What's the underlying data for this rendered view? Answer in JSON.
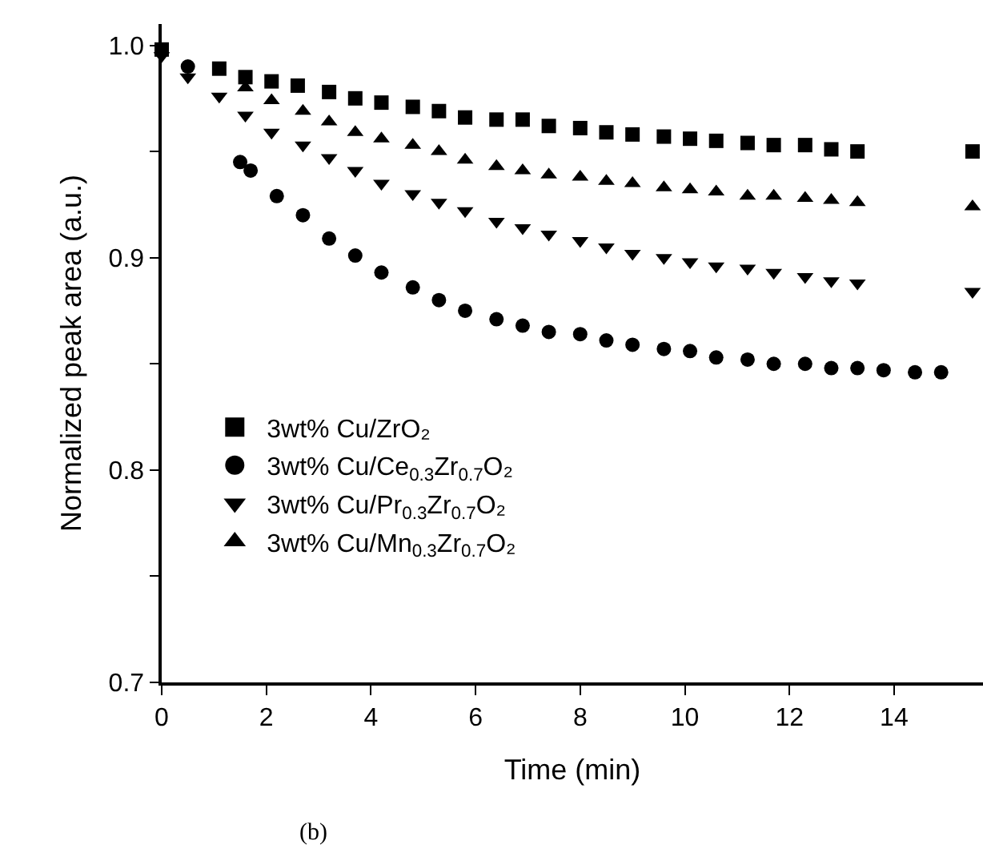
{
  "chart_data": {
    "type": "scatter",
    "xlabel": "Time (min)",
    "ylabel": "Normalized peak area (a.u.)",
    "xlim": [
      0,
      15.7
    ],
    "ylim": [
      0.7,
      1.01
    ],
    "xticks": [
      0,
      2,
      4,
      6,
      8,
      10,
      12,
      14
    ],
    "yticks": [
      {
        "value": 0.7,
        "label": "0.7"
      },
      {
        "value": 0.75,
        "label": null
      },
      {
        "value": 0.8,
        "label": "0.8"
      },
      {
        "value": 0.85,
        "label": null
      },
      {
        "value": 0.9,
        "label": "0.9"
      },
      {
        "value": 0.95,
        "label": null
      },
      {
        "value": 1.0,
        "label": "1.0"
      }
    ],
    "legend": "left",
    "annotations": [
      "(b)"
    ],
    "series": [
      {
        "name": "3wt% Cu/ZrO₂",
        "color": "#000000",
        "marker": "square",
        "x": [
          0,
          0.5,
          1.1,
          1.6,
          2.1,
          2.6,
          3.2,
          3.7,
          4.2,
          4.8,
          5.3,
          5.8,
          6.4,
          6.9,
          7.4,
          8.0,
          8.5,
          9.0,
          9.6,
          10.1,
          10.6,
          11.2,
          11.7,
          12.3,
          12.8,
          13.3,
          15.5
        ],
        "values": [
          0.998,
          null,
          0.989,
          0.985,
          0.983,
          0.981,
          0.978,
          0.975,
          0.973,
          0.971,
          0.969,
          0.966,
          0.965,
          0.965,
          0.962,
          0.961,
          0.959,
          0.958,
          0.957,
          0.956,
          0.955,
          0.954,
          0.953,
          0.953,
          0.951,
          0.95,
          0.95
        ]
      },
      {
        "name": "3wt% Cu/Ce$_{0.3}$Zr$_{0.7}$O₂",
        "color": "#000000",
        "marker": "circle",
        "x": [
          0.5,
          1.5,
          1.7,
          2.2,
          2.7,
          3.2,
          3.7,
          4.2,
          4.8,
          5.3,
          5.8,
          6.4,
          6.9,
          7.4,
          8.0,
          8.5,
          9.0,
          9.6,
          10.1,
          10.6,
          11.2,
          11.7,
          12.3,
          12.8,
          13.3,
          13.8,
          14.4,
          14.9
        ],
        "values": [
          0.99,
          0.945,
          0.941,
          0.929,
          0.92,
          0.909,
          0.901,
          0.893,
          0.886,
          0.88,
          0.875,
          0.871,
          0.868,
          0.865,
          0.864,
          0.861,
          0.859,
          0.857,
          0.856,
          0.853,
          0.852,
          0.85,
          0.85,
          0.848,
          0.848,
          0.847,
          0.846,
          0.846
        ]
      },
      {
        "name": "3wt% Cu/Pr$_{0.3}$Zr$_{0.7}$O₂",
        "color": "#000000",
        "marker": "triangle-down",
        "x": [
          0,
          0.5,
          1.1,
          1.6,
          2.1,
          2.7,
          3.2,
          3.7,
          4.2,
          4.8,
          5.3,
          5.8,
          6.4,
          6.9,
          7.4,
          8.0,
          8.5,
          9.0,
          9.6,
          10.1,
          10.6,
          11.2,
          11.7,
          12.3,
          12.8,
          13.3,
          15.5
        ],
        "values": [
          0.995,
          0.985,
          0.976,
          0.967,
          0.959,
          0.953,
          0.947,
          0.941,
          0.935,
          0.93,
          0.926,
          0.922,
          0.917,
          0.914,
          0.911,
          0.908,
          0.905,
          0.902,
          0.9,
          0.898,
          0.896,
          0.895,
          0.893,
          0.891,
          0.889,
          0.888,
          0.884
        ]
      },
      {
        "name": "3wt% Cu/Mn$_{0.3}$Zr$_{0.7}$O₂",
        "color": "#000000",
        "marker": "triangle-up",
        "x": [
          1.6,
          2.1,
          2.7,
          3.2,
          3.7,
          4.2,
          4.8,
          5.3,
          5.8,
          6.4,
          6.9,
          7.4,
          8.0,
          8.5,
          9.0,
          9.6,
          10.1,
          10.6,
          11.2,
          11.7,
          12.3,
          12.8,
          13.3,
          15.5
        ],
        "values": [
          0.98,
          0.974,
          0.969,
          0.964,
          0.959,
          0.956,
          0.953,
          0.95,
          0.946,
          0.943,
          0.941,
          0.939,
          0.938,
          0.936,
          0.935,
          0.933,
          0.932,
          0.931,
          0.929,
          0.929,
          0.928,
          0.927,
          0.926,
          0.924
        ]
      }
    ]
  }
}
